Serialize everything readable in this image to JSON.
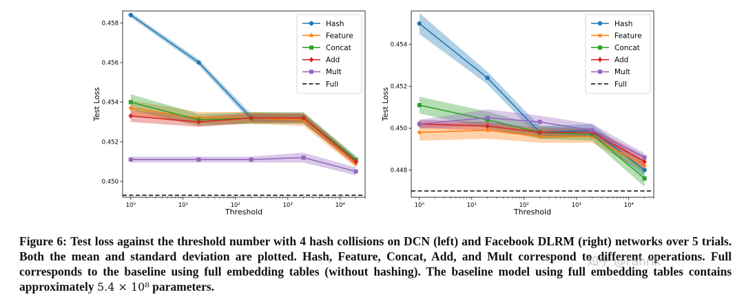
{
  "colors": {
    "Hash": "#1f77b4",
    "Feature": "#ff7f0e",
    "Concat": "#2ca02c",
    "Add": "#d62728",
    "Mult": "#9467bd",
    "Full": "#000000"
  },
  "chart_data": [
    {
      "type": "line",
      "xscale": "log",
      "x": [
        1,
        20,
        200,
        2000,
        20000
      ],
      "xlim": [
        0.7,
        30000
      ],
      "ylim": [
        0.4492,
        0.4586
      ],
      "xlabel": "Threshold",
      "ylabel": "Test Loss",
      "xticks": [
        1,
        10,
        100,
        1000,
        10000
      ],
      "xtick_labels": [
        "10⁰",
        "10¹",
        "10²",
        "10³",
        "10⁴"
      ],
      "yticks": [
        0.45,
        0.452,
        0.454,
        0.456,
        0.458
      ],
      "ytick_labels": [
        "0.450",
        "0.452",
        "0.454",
        "0.456",
        "0.458"
      ],
      "legend_position": "top-right",
      "series": [
        {
          "name": "Hash",
          "marker": "circle",
          "values": [
            0.4584,
            0.456,
            0.4532,
            0.4532,
            0.451
          ],
          "std": [
            0.00012,
            0.00015,
            0.0002,
            0.0002,
            0.0002
          ]
        },
        {
          "name": "Feature",
          "marker": "star",
          "values": [
            0.4537,
            0.4532,
            0.4532,
            0.4531,
            0.4509
          ],
          "std": [
            0.0004,
            0.0003,
            0.0003,
            0.0003,
            0.0002
          ]
        },
        {
          "name": "Concat",
          "marker": "square",
          "values": [
            0.454,
            0.4531,
            0.4532,
            0.4532,
            0.4511
          ],
          "std": [
            0.0004,
            0.0003,
            0.0003,
            0.0003,
            0.0002
          ]
        },
        {
          "name": "Add",
          "marker": "diamond",
          "values": [
            0.4533,
            0.453,
            0.4532,
            0.4532,
            0.451
          ],
          "std": [
            0.0003,
            0.00025,
            0.00025,
            0.00025,
            0.0002
          ]
        },
        {
          "name": "Mult",
          "marker": "square",
          "values": [
            0.4511,
            0.4511,
            0.4511,
            0.4512,
            0.4505
          ],
          "std": [
            0.00015,
            0.00015,
            0.00015,
            0.00025,
            0.0002
          ]
        }
      ],
      "baseline": {
        "name": "Full",
        "value": 0.4493
      }
    },
    {
      "type": "line",
      "xscale": "log",
      "x": [
        1,
        20,
        200,
        2000,
        20000
      ],
      "xlim": [
        0.7,
        30000
      ],
      "ylim": [
        0.4467,
        0.4556
      ],
      "xlabel": "Threshold",
      "ylabel": "Test Loss",
      "xticks": [
        1,
        10,
        100,
        1000,
        10000
      ],
      "xtick_labels": [
        "10⁰",
        "10¹",
        "10²",
        "10³",
        "10⁴"
      ],
      "yticks": [
        0.448,
        0.45,
        0.452,
        0.454
      ],
      "ytick_labels": [
        "0.448",
        "0.450",
        "0.452",
        "0.454"
      ],
      "legend_position": "top-right",
      "series": [
        {
          "name": "Hash",
          "marker": "circle",
          "values": [
            0.455,
            0.4524,
            0.4498,
            0.4499,
            0.448
          ],
          "std": [
            0.0005,
            0.0003,
            0.0003,
            0.0003,
            0.0003
          ]
        },
        {
          "name": "Feature",
          "marker": "star",
          "values": [
            0.4498,
            0.4499,
            0.4496,
            0.4496,
            0.4482
          ],
          "std": [
            0.0004,
            0.0004,
            0.0003,
            0.0003,
            0.0003
          ]
        },
        {
          "name": "Concat",
          "marker": "square",
          "values": [
            0.4511,
            0.4504,
            0.4498,
            0.4497,
            0.4476
          ],
          "std": [
            0.0004,
            0.0004,
            0.0003,
            0.0003,
            0.0004
          ]
        },
        {
          "name": "Add",
          "marker": "diamond",
          "values": [
            0.4502,
            0.4501,
            0.4498,
            0.4498,
            0.4484
          ],
          "std": [
            0.0002,
            0.0002,
            0.0002,
            0.0002,
            0.0003
          ]
        },
        {
          "name": "Mult",
          "marker": "square",
          "values": [
            0.4502,
            0.4505,
            0.4503,
            0.4499,
            0.4486
          ],
          "std": [
            0.0002,
            0.0004,
            0.0003,
            0.0003,
            0.0002
          ]
        }
      ],
      "baseline": {
        "name": "Full",
        "value": 0.447
      }
    }
  ],
  "caption": {
    "label": "Figure 6:",
    "text": "Test loss against the threshold number with 4 hash collisions on DCN (left) and Facebook DLRM (right) networks over 5 trials. Both the mean and standard deviation are plotted. Hash, Feature, Concat, Add, and Mult correspond to different operations. Full corresponds to the baseline using full embedding tables (without hashing). The baseline model using full embedding tables contains approximately",
    "param_math": "5.4 × 10⁸",
    "param_tail": "parameters."
  },
  "watermark": "知乎 @Fahrik"
}
